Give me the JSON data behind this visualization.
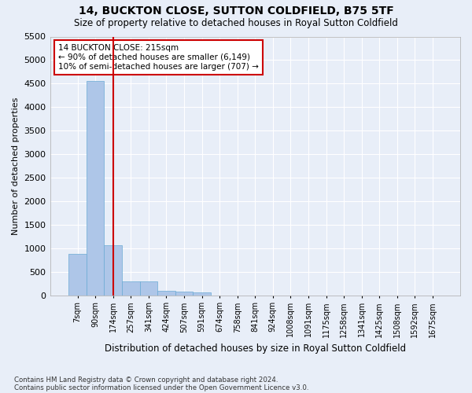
{
  "title1": "14, BUCKTON CLOSE, SUTTON COLDFIELD, B75 5TF",
  "title2": "Size of property relative to detached houses in Royal Sutton Coldfield",
  "xlabel": "Distribution of detached houses by size in Royal Sutton Coldfield",
  "ylabel": "Number of detached properties",
  "footnote1": "Contains HM Land Registry data © Crown copyright and database right 2024.",
  "footnote2": "Contains public sector information licensed under the Open Government Licence v3.0.",
  "bar_values": [
    880,
    4560,
    1060,
    290,
    290,
    90,
    75,
    55,
    0,
    0,
    0,
    0,
    0,
    0,
    0,
    0,
    0,
    0,
    0,
    0,
    0
  ],
  "categories": [
    "7sqm",
    "90sqm",
    "174sqm",
    "257sqm",
    "341sqm",
    "424sqm",
    "507sqm",
    "591sqm",
    "674sqm",
    "758sqm",
    "841sqm",
    "924sqm",
    "1008sqm",
    "1091sqm",
    "1175sqm",
    "1258sqm",
    "1341sqm",
    "1425sqm",
    "1508sqm",
    "1592sqm",
    "1675sqm"
  ],
  "bar_color": "#aec6e8",
  "bar_edge_color": "#6aaad4",
  "vline_x": 2,
  "vline_color": "#cc0000",
  "ylim_max": 5500,
  "yticks": [
    0,
    500,
    1000,
    1500,
    2000,
    2500,
    3000,
    3500,
    4000,
    4500,
    5000,
    5500
  ],
  "annotation_title": "14 BUCKTON CLOSE: 215sqm",
  "annotation_line1": "← 90% of detached houses are smaller (6,149)",
  "annotation_line2": "10% of semi-detached houses are larger (707) →",
  "background_color": "#e8eef8",
  "grid_color": "#ffffff"
}
